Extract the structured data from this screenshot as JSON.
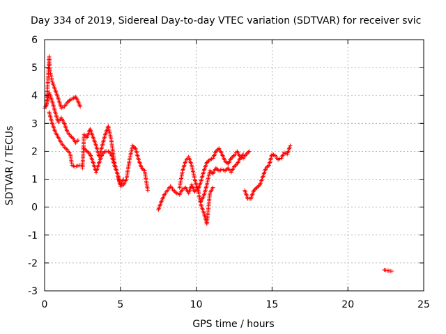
{
  "chart_data": {
    "type": "scatter",
    "title": "Day 334 of 2019, Sidereal Day-to-day VTEC variation (SDTVAR) for receiver svic",
    "xlabel": "GPS time / hours",
    "ylabel": "SDTVAR / TECUs",
    "xlim": [
      0,
      25
    ],
    "ylim": [
      -3,
      6
    ],
    "xticks": [
      0,
      5,
      10,
      15,
      20,
      25
    ],
    "yticks": [
      -3,
      -2,
      -1,
      0,
      1,
      2,
      3,
      4,
      5,
      6
    ],
    "grid": true,
    "marker": "plus",
    "color": "#ff0000",
    "series": [
      {
        "name": "SDTVAR",
        "segments": [
          {
            "x": [
              0.0,
              0.15,
              0.3,
              0.35,
              0.5,
              0.7,
              0.9,
              1.1,
              1.3,
              1.5,
              1.7,
              1.9,
              2.05,
              2.2,
              2.35
            ],
            "y": [
              3.55,
              3.7,
              5.4,
              4.9,
              4.5,
              4.2,
              3.9,
              3.55,
              3.6,
              3.75,
              3.85,
              3.9,
              3.95,
              3.8,
              3.6
            ]
          },
          {
            "x": [
              0.1,
              0.3,
              0.5,
              0.7,
              0.9,
              1.1,
              1.3,
              1.5,
              1.7,
              1.9,
              2.05,
              2.2
            ],
            "y": [
              3.6,
              4.1,
              3.8,
              3.4,
              3.05,
              3.2,
              3.0,
              2.7,
              2.55,
              2.45,
              2.3,
              2.4
            ]
          },
          {
            "x": [
              0.3,
              0.5,
              0.7,
              0.9,
              1.1,
              1.3,
              1.5,
              1.7,
              1.8,
              2.0,
              2.3,
              2.5
            ],
            "y": [
              3.4,
              3.0,
              2.7,
              2.5,
              2.3,
              2.15,
              2.05,
              1.9,
              1.5,
              1.45,
              1.5,
              1.5
            ]
          },
          {
            "x": [
              2.5,
              2.6,
              2.8,
              3.0,
              3.2,
              3.4,
              3.6,
              3.8,
              4.0,
              4.2,
              4.4,
              4.6,
              4.8,
              5.0,
              5.2
            ],
            "y": [
              1.4,
              2.6,
              2.5,
              2.8,
              2.5,
              2.2,
              1.8,
              2.2,
              2.6,
              2.9,
              2.4,
              1.6,
              1.2,
              0.8,
              1.0
            ]
          },
          {
            "x": [
              2.6,
              2.8,
              3.0,
              3.2,
              3.4,
              3.6,
              3.8,
              4.0,
              4.2,
              4.4,
              4.6,
              4.8,
              5.0,
              5.2,
              5.4,
              5.6,
              5.8,
              6.0,
              6.2,
              6.4,
              6.6,
              6.8
            ],
            "y": [
              2.1,
              2.0,
              1.9,
              1.6,
              1.25,
              1.6,
              1.9,
              2.0,
              2.0,
              1.9,
              1.5,
              1.2,
              0.75,
              0.8,
              1.0,
              1.7,
              2.2,
              2.1,
              1.7,
              1.4,
              1.3,
              0.6
            ]
          },
          {
            "x": [
              7.5,
              7.7,
              7.9,
              8.1,
              8.3,
              8.5,
              8.7,
              8.9,
              9.1,
              9.3,
              9.5,
              9.7,
              9.9,
              10.1,
              10.3,
              10.5,
              10.7,
              10.9,
              11.1
            ],
            "y": [
              -0.1,
              0.2,
              0.45,
              0.6,
              0.75,
              0.6,
              0.5,
              0.45,
              0.65,
              0.7,
              0.5,
              0.8,
              0.55,
              0.7,
              0.1,
              -0.2,
              -0.6,
              0.5,
              0.7
            ]
          },
          {
            "x": [
              8.9,
              9.1,
              9.3,
              9.5,
              9.7,
              9.9,
              10.1,
              10.3,
              10.5,
              10.7,
              10.9,
              11.1,
              11.3,
              11.5,
              11.7,
              11.9,
              12.1,
              12.3,
              12.5,
              12.7,
              12.9,
              13.1,
              13.3,
              13.5
            ],
            "y": [
              0.7,
              1.3,
              1.65,
              1.8,
              1.5,
              1.0,
              0.6,
              0.9,
              1.3,
              1.6,
              1.7,
              1.75,
              2.0,
              2.1,
              1.9,
              1.65,
              1.55,
              1.75,
              1.85,
              2.0,
              1.8,
              1.75,
              1.9,
              2.0
            ]
          },
          {
            "x": [
              10.3,
              10.5,
              10.7,
              10.9,
              11.1,
              11.3,
              11.5,
              11.7,
              11.9,
              12.1,
              12.3,
              12.5,
              12.7,
              12.9,
              13.1
            ],
            "y": [
              0.2,
              0.4,
              0.8,
              1.3,
              1.2,
              1.4,
              1.3,
              1.35,
              1.3,
              1.4,
              1.25,
              1.45,
              1.55,
              1.75,
              1.9
            ]
          },
          {
            "x": [
              13.2,
              13.4,
              13.6,
              13.8,
              14.0,
              14.2,
              14.4,
              14.6,
              14.8,
              15.0,
              15.2,
              15.4,
              15.6,
              15.8,
              16.0,
              16.2
            ],
            "y": [
              0.6,
              0.3,
              0.3,
              0.6,
              0.7,
              0.8,
              1.1,
              1.4,
              1.5,
              1.9,
              1.85,
              1.7,
              1.75,
              1.95,
              1.9,
              2.2
            ]
          },
          {
            "x": [
              22.4,
              22.9
            ],
            "y": [
              -2.25,
              -2.3
            ]
          }
        ]
      }
    ]
  }
}
